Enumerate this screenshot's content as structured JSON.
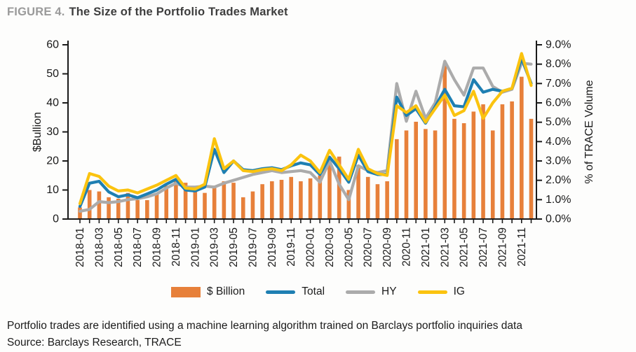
{
  "figure": {
    "label": "FIGURE 4.",
    "title": "The Size of the Portfolio Trades Market"
  },
  "chart_data": {
    "type": "bar+line",
    "categories": [
      "2018-01",
      "2018-02",
      "2018-03",
      "2018-04",
      "2018-05",
      "2018-06",
      "2018-07",
      "2018-08",
      "2018-09",
      "2018-10",
      "2018-11",
      "2018-12",
      "2019-01",
      "2019-02",
      "2019-03",
      "2019-04",
      "2019-05",
      "2019-06",
      "2019-07",
      "2019-08",
      "2019-09",
      "2019-10",
      "2019-11",
      "2019-12",
      "2020-01",
      "2020-02",
      "2020-03",
      "2020-04",
      "2020-05",
      "2020-06",
      "2020-07",
      "2020-08",
      "2020-09",
      "2020-10",
      "2020-11",
      "2020-12",
      "2021-01",
      "2021-02",
      "2021-03",
      "2021-04",
      "2021-05",
      "2021-06",
      "2021-07",
      "2021-08",
      "2021-09",
      "2021-10",
      "2021-11",
      "2021-12"
    ],
    "x_tick_labels": [
      "2018-01",
      "2018-03",
      "2018-05",
      "2018-07",
      "2018-09",
      "2018-11",
      "2019-01",
      "2019-03",
      "2019-05",
      "2019-07",
      "2019-09",
      "2019-11",
      "2020-01",
      "2020-03",
      "2020-05",
      "2020-07",
      "2020-09",
      "2020-11",
      "2021-01",
      "2021-03",
      "2021-05",
      "2021-07",
      "2021-09",
      "2021-11"
    ],
    "bar_series": {
      "name": "$ Billion",
      "axis": "left",
      "color": "#E7803A",
      "values": [
        4,
        10,
        9.5,
        7.5,
        7,
        9,
        6.5,
        6.5,
        9,
        11.5,
        13,
        12.5,
        10,
        9,
        11.5,
        13,
        12.5,
        7.5,
        9.5,
        12,
        13,
        13.5,
        14.5,
        13,
        14,
        15,
        19.5,
        21.5,
        10,
        18.5,
        14.5,
        12,
        13,
        27.5,
        30.5,
        33.5,
        31,
        30.5,
        53,
        34.5,
        33,
        37,
        39.5,
        30.5,
        39.5,
        40.5,
        49,
        34.5
      ]
    },
    "series": [
      {
        "name": "Total",
        "axis": "right",
        "color": "#1E7FB2",
        "values": [
          0.65,
          1.85,
          1.95,
          1.4,
          1.15,
          1.25,
          1.1,
          1.3,
          1.5,
          1.8,
          2.05,
          1.5,
          1.45,
          1.65,
          3.6,
          2.4,
          3.0,
          2.55,
          2.5,
          2.6,
          2.65,
          2.55,
          2.75,
          2.9,
          2.8,
          2.3,
          3.2,
          2.6,
          1.9,
          3.3,
          2.45,
          2.3,
          2.3,
          6.3,
          5.35,
          5.7,
          4.95,
          5.8,
          6.7,
          5.85,
          5.8,
          7.2,
          6.55,
          6.7,
          6.6,
          6.75,
          8.3,
          7.0
        ]
      },
      {
        "name": "HY",
        "axis": "right",
        "color": "#ABABAB",
        "values": [
          0.4,
          0.5,
          0.9,
          0.85,
          0.9,
          1.0,
          1.05,
          1.15,
          1.3,
          1.6,
          1.85,
          1.65,
          1.65,
          1.7,
          1.65,
          1.85,
          2.0,
          2.15,
          2.3,
          2.4,
          2.5,
          2.4,
          2.45,
          2.5,
          2.4,
          1.9,
          3.0,
          1.8,
          1.0,
          2.75,
          2.5,
          2.4,
          2.5,
          7.0,
          5.05,
          6.6,
          5.2,
          6.0,
          8.15,
          7.2,
          6.4,
          7.8,
          7.8,
          6.85,
          6.55,
          6.7,
          8.05,
          8.0
        ]
      },
      {
        "name": "IG",
        "axis": "right",
        "color": "#FBC30F",
        "values": [
          0.8,
          2.35,
          2.2,
          1.7,
          1.45,
          1.5,
          1.35,
          1.55,
          1.75,
          2.0,
          2.25,
          1.6,
          1.55,
          1.8,
          4.15,
          2.6,
          3.0,
          2.5,
          2.45,
          2.55,
          2.6,
          2.5,
          2.8,
          3.3,
          3.0,
          2.4,
          3.55,
          2.8,
          2.05,
          3.6,
          2.6,
          2.35,
          2.25,
          5.85,
          5.5,
          5.85,
          5.0,
          5.7,
          6.4,
          5.35,
          5.6,
          6.6,
          5.2,
          6.0,
          6.6,
          6.75,
          8.55,
          6.9
        ]
      }
    ],
    "left_axis": {
      "label": "$Bullion",
      "min": 0,
      "max": 60,
      "step": 10
    },
    "right_axis": {
      "label": "% of TRACE Volume",
      "min": 0,
      "max": 9,
      "step": 1,
      "format": "percent"
    },
    "grid": false,
    "legend_position": "bottom"
  },
  "legend": {
    "items": [
      {
        "label": "$ Billion",
        "marker": "bar",
        "color": "#E7803A"
      },
      {
        "label": "Total",
        "marker": "line",
        "color": "#1E7FB2"
      },
      {
        "label": "HY",
        "marker": "line",
        "color": "#ABABAB"
      },
      {
        "label": "IG",
        "marker": "line",
        "color": "#FBC30F"
      }
    ]
  },
  "footnote": "Portfolio trades are identified using a machine learning algorithm trained on Barclays portfolio inquiries data",
  "source": "Source: Barclays Research, TRACE"
}
